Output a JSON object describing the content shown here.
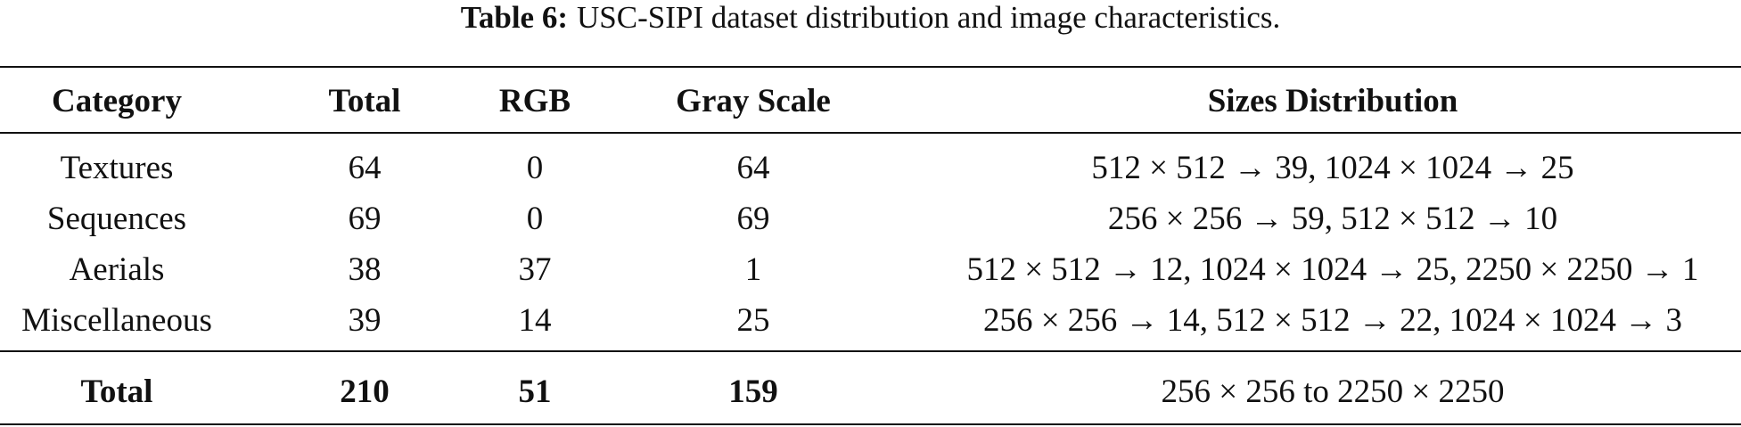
{
  "caption": {
    "label": "Table 6:",
    "text": "USC-SIPI dataset distribution and image characteristics."
  },
  "table": {
    "header": [
      "Category",
      "Total",
      "RGB",
      "Gray Scale",
      "Sizes Distribution"
    ],
    "rows": [
      [
        "Textures",
        64,
        0,
        64,
        "512 × 512 → 39, 1024 × 1024 → 25"
      ],
      [
        "Sequences",
        69,
        0,
        69,
        "256 × 256 → 59, 512 × 512 → 10"
      ],
      [
        "Aerials",
        38,
        37,
        1,
        "512 × 512 → 12, 1024 × 1024 → 25, 2250 × 2250 → 1"
      ],
      [
        "Miscellaneous",
        39,
        14,
        25,
        "256 × 256 → 14, 512 × 512 → 22, 1024 × 1024 → 3"
      ]
    ],
    "footer": [
      "Total",
      210,
      51,
      159,
      "256 × 256 to 2250 × 2250"
    ]
  }
}
